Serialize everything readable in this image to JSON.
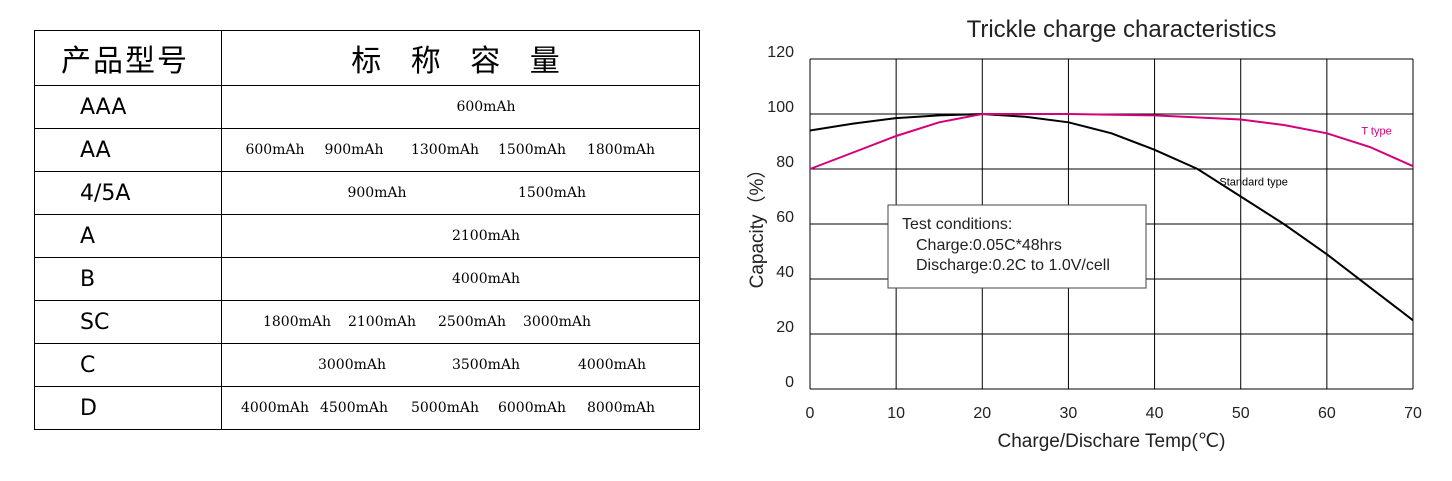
{
  "table": {
    "header_model": "产品型号",
    "header_capacity": "标 称 容 量",
    "rows": [
      {
        "model": "AAA",
        "caps": [
          "600mAh"
        ]
      },
      {
        "model": "AA",
        "caps": [
          "600mAh",
          "900mAh",
          "1300mAh",
          "1500mAh",
          "1800mAh"
        ]
      },
      {
        "model": "4/5A",
        "caps": [
          "900mAh",
          "1500mAh"
        ]
      },
      {
        "model": "A",
        "caps": [
          "2100mAh"
        ]
      },
      {
        "model": "B",
        "caps": [
          "4000mAh"
        ]
      },
      {
        "model": "SC",
        "caps": [
          "1800mAh",
          "2100mAh",
          "2500mAh",
          "3000mAh"
        ]
      },
      {
        "model": "C",
        "caps": [
          "3000mAh",
          "3500mAh",
          "4000mAh"
        ]
      },
      {
        "model": "D",
        "caps": [
          "4000mAh",
          "4500mAh",
          "5000mAh",
          "6000mAh",
          "8000mAh"
        ]
      }
    ]
  },
  "chart_data": {
    "type": "line",
    "title": "Trickle charge characteristics",
    "xlabel": "Charge/Dischare Temp(℃)",
    "ylabel": "Capacity（%）",
    "xlim": [
      0,
      70
    ],
    "ylim": [
      0,
      120
    ],
    "xticks": [
      0,
      10,
      20,
      30,
      40,
      50,
      60,
      70
    ],
    "yticks": [
      0,
      20,
      40,
      60,
      80,
      100,
      120
    ],
    "grid": true,
    "series": [
      {
        "name": "Standard type",
        "color": "#000000",
        "x": [
          0,
          5,
          10,
          15,
          20,
          25,
          30,
          35,
          40,
          45,
          50,
          55,
          60,
          65,
          70
        ],
        "y": [
          94,
          96.5,
          98.5,
          99.5,
          100,
          99,
          97,
          93,
          87,
          80,
          70,
          60,
          49,
          37,
          25
        ]
      },
      {
        "name": "T type",
        "color": "#d4007a",
        "x": [
          0,
          5,
          10,
          15,
          20,
          25,
          30,
          40,
          50,
          55,
          60,
          65,
          70
        ],
        "y": [
          80,
          86,
          92,
          97,
          100,
          100,
          100,
          99.5,
          98,
          96,
          93,
          88,
          81
        ]
      }
    ],
    "annotation": {
      "lines": [
        "Test conditions:",
        "Charge:0.05C*48hrs",
        "Discharge:0.2C to 1.0V/cell"
      ]
    }
  }
}
